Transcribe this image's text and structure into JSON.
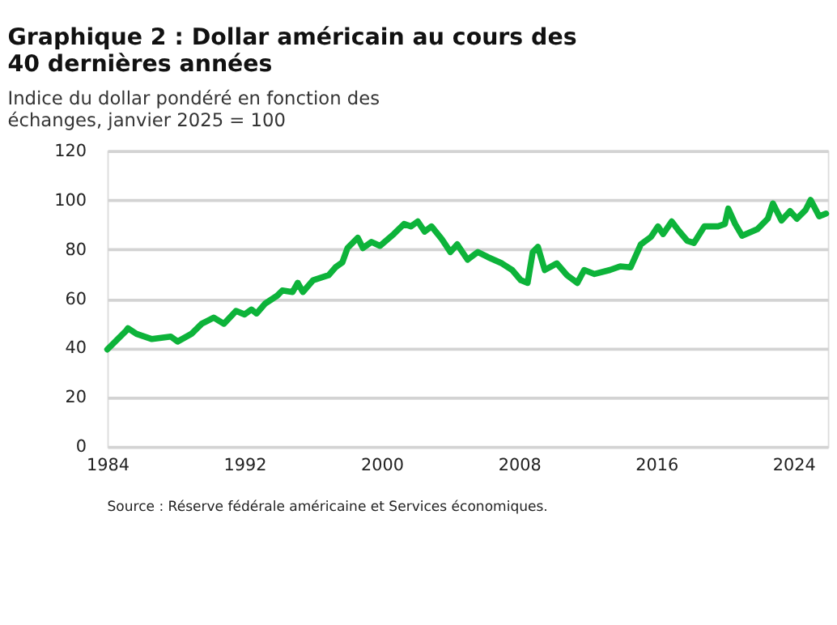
{
  "chart_data": {
    "type": "line",
    "title": "Graphique 2 : Dollar américain au cours des 40 dernières années",
    "ylabel": "Indice du dollar pondéré en fonction des échanges, janvier 2025 = 100",
    "annotations": [
      "Source : Réserve fédérale américaine et Services économiques."
    ],
    "x": [
      1984.0,
      1985.1,
      1985.2,
      1985.7,
      1986.6,
      1987.7,
      1988.1,
      1988.9,
      1989.5,
      1990.2,
      1990.8,
      1991.5,
      1992.0,
      1992.4,
      1992.7,
      1993.2,
      1993.9,
      1994.2,
      1994.8,
      1995.1,
      1995.4,
      1996.0,
      1996.9,
      1997.3,
      1997.7,
      1998.0,
      1998.6,
      1998.9,
      1999.4,
      1999.9,
      2000.7,
      2001.3,
      2001.7,
      2002.1,
      2002.5,
      2002.9,
      2003.5,
      2004.0,
      2004.4,
      2005.0,
      2005.6,
      2006.2,
      2007.0,
      2007.6,
      2008.1,
      2008.5,
      2008.8,
      2009.1,
      2009.5,
      2010.2,
      2010.8,
      2011.4,
      2011.8,
      2012.4,
      2013.3,
      2013.9,
      2014.5,
      2015.1,
      2015.7,
      2016.1,
      2016.4,
      2016.9,
      2017.3,
      2017.8,
      2018.2,
      2018.8,
      2019.6,
      2020.0,
      2020.2,
      2020.6,
      2021.0,
      2021.9,
      2022.5,
      2022.8,
      2023.3,
      2023.8,
      2024.2,
      2024.7,
      2025.0,
      2025.5,
      2025.9
    ],
    "series": [
      {
        "color": "#0db33a",
        "values": [
          39.4,
          47,
          48,
          45.7,
          43.6,
          44.6,
          42.6,
          45.7,
          49.8,
          52.3,
          49.8,
          55,
          53.6,
          55.6,
          54,
          58,
          61.2,
          63.3,
          62.7,
          66.4,
          62.7,
          67.5,
          69.5,
          72.7,
          74.7,
          80.5,
          84.7,
          80.5,
          83,
          81.4,
          86.2,
          90.3,
          89.3,
          91.3,
          87.2,
          89.3,
          84.1,
          78.9,
          82,
          75.8,
          78.9,
          76.8,
          74.3,
          71.6,
          67.5,
          66.4,
          78.9,
          81,
          71.6,
          74.3,
          69.5,
          66.4,
          71.6,
          70,
          71.6,
          73.1,
          72.7,
          82,
          85.1,
          89.3,
          86.2,
          91.3,
          87.6,
          83.5,
          82.6,
          89.3,
          89.3,
          90.3,
          96.5,
          90.3,
          85.5,
          88.2,
          92.4,
          98.6,
          91.7,
          95.5,
          92.4,
          95.9,
          100,
          93.4,
          94.5
        ]
      }
    ],
    "xlim": [
      1984,
      2026
    ],
    "xticks": [
      1984,
      1992,
      2000,
      2008,
      2016,
      2024
    ],
    "ylim": [
      0,
      120
    ],
    "yticks": [
      0,
      20,
      40,
      60,
      80,
      100,
      120
    ],
    "grid": "y"
  }
}
